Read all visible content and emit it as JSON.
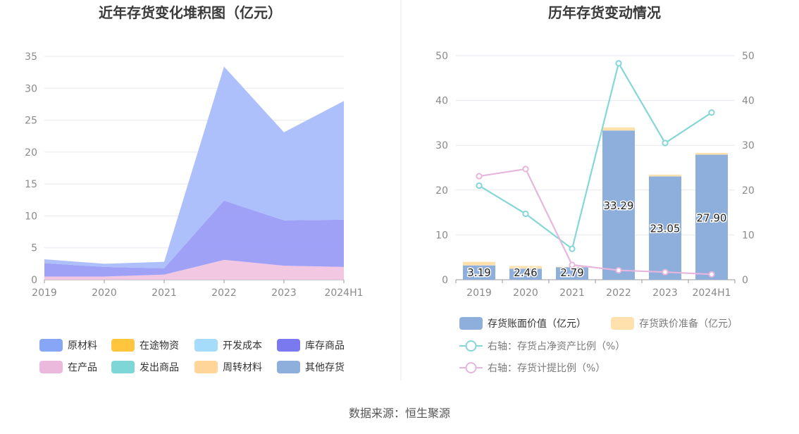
{
  "source": "数据来源：恒生聚源",
  "chart_data": [
    {
      "type": "area",
      "stacked": true,
      "title": "近年存货变化堆积图（亿元）",
      "categories": [
        "2019",
        "2020",
        "2021",
        "2022",
        "2023",
        "2024H1"
      ],
      "ylim": [
        0,
        35
      ],
      "yticks": [
        0,
        5,
        10,
        15,
        20,
        25,
        30,
        35
      ],
      "legend_position": "bottom",
      "series": [
        {
          "name": "在产品",
          "color": "#f0c4e0",
          "values": [
            0.5,
            0.5,
            0.8,
            3.1,
            2.2,
            2.0
          ]
        },
        {
          "name": "库存商品",
          "color": "#9a9cf7",
          "values": [
            2.1,
            1.5,
            1.0,
            9.3,
            7.1,
            7.4
          ]
        },
        {
          "name": "原材料",
          "color": "#a9bdfb",
          "values": [
            0.6,
            0.5,
            1.0,
            21.0,
            13.8,
            18.6
          ]
        },
        {
          "name": "在途物资",
          "color": "#ffc53d",
          "values": [
            0,
            0,
            0,
            0,
            0,
            0
          ]
        },
        {
          "name": "开发成本",
          "color": "#a6dcfb",
          "values": [
            0,
            0,
            0,
            0,
            0,
            0
          ]
        },
        {
          "name": "发出商品",
          "color": "#7fd6d6",
          "values": [
            0,
            0,
            0,
            0,
            0,
            0
          ]
        },
        {
          "name": "周转材料",
          "color": "#ffd59a",
          "values": [
            0,
            0,
            0,
            0,
            0,
            0
          ]
        },
        {
          "name": "其他存货",
          "color": "#8eaedc",
          "values": [
            0,
            0,
            0,
            0,
            0,
            0
          ]
        }
      ],
      "legend": [
        {
          "name": "原材料",
          "color": "#88a6f6"
        },
        {
          "name": "在途物资",
          "color": "#ffc53d"
        },
        {
          "name": "开发成本",
          "color": "#a6dcfb"
        },
        {
          "name": "库存商品",
          "color": "#7b79ef"
        },
        {
          "name": "在产品",
          "color": "#ebb9db"
        },
        {
          "name": "发出商品",
          "color": "#7fd6d6"
        },
        {
          "name": "周转材料",
          "color": "#ffd59a"
        },
        {
          "name": "其他存货",
          "color": "#8eaedc"
        }
      ]
    },
    {
      "type": "bar+line",
      "title": "历年存货变动情况",
      "categories": [
        "2019",
        "2020",
        "2021",
        "2022",
        "2023",
        "2024H1"
      ],
      "ylim_left": [
        0,
        50
      ],
      "ylim_right": [
        0,
        50
      ],
      "yticks_left": [
        0,
        10,
        20,
        30,
        40,
        50
      ],
      "yticks_right": [
        0,
        10,
        20,
        30,
        40,
        50
      ],
      "legend_position": "bottom",
      "bars": [
        {
          "name": "存货账面价值（亿元）",
          "color": "#8eaedc",
          "values": [
            3.19,
            2.46,
            2.79,
            33.29,
            23.05,
            27.9
          ],
          "labels": [
            "3.19",
            "2.46",
            "2.79",
            "33.29",
            "23.05",
            "27.90"
          ]
        },
        {
          "name": "存货跌价准备（亿元）",
          "color": "#ffe1ae",
          "values": [
            0.8,
            0.6,
            0.1,
            0.7,
            0.4,
            0.4
          ]
        }
      ],
      "lines": [
        {
          "name": "右轴：存货占净资产比例（%）",
          "color": "#86d6d8",
          "values": [
            21.0,
            14.7,
            6.9,
            48.3,
            30.5,
            37.3
          ]
        },
        {
          "name": "右轴：存货计提比例（%）",
          "color": "#e6b6dc",
          "values": [
            23.1,
            24.7,
            3.3,
            2.1,
            1.7,
            1.2
          ]
        }
      ]
    }
  ]
}
